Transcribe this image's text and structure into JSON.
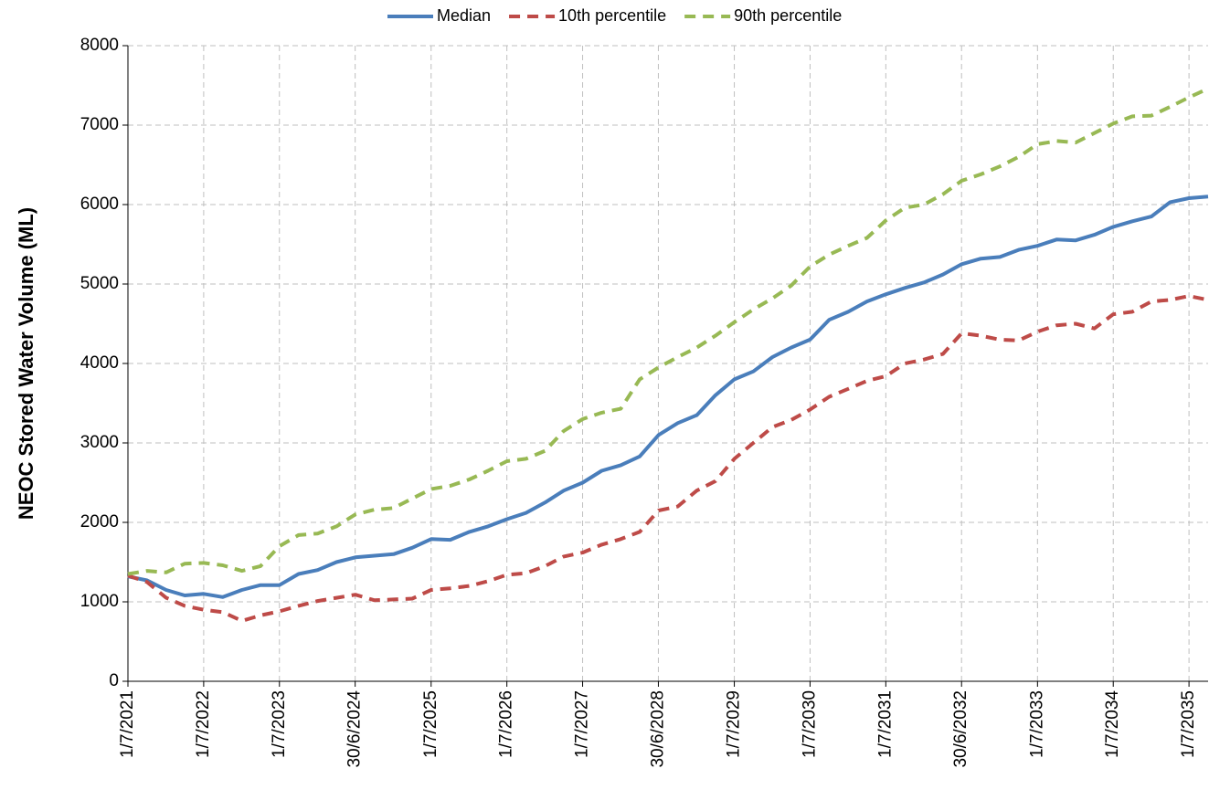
{
  "chart_data": {
    "type": "line",
    "y_label": "NEOC Stored Water Volume (ML)",
    "x": [
      "2021-07-01",
      "2021-10-01",
      "2022-01-01",
      "2022-04-01",
      "2022-07-01",
      "2022-10-01",
      "2023-01-01",
      "2023-04-01",
      "2023-07-01",
      "2023-10-01",
      "2024-01-01",
      "2024-04-01",
      "2024-07-01",
      "2024-10-01",
      "2025-01-01",
      "2025-04-01",
      "2025-07-01",
      "2025-10-01",
      "2026-01-01",
      "2026-04-01",
      "2026-07-01",
      "2026-10-01",
      "2027-01-01",
      "2027-04-01",
      "2027-07-01",
      "2027-10-01",
      "2028-01-01",
      "2028-04-01",
      "2028-07-01",
      "2028-10-01",
      "2029-01-01",
      "2029-04-01",
      "2029-07-01",
      "2029-10-01",
      "2030-01-01",
      "2030-04-01",
      "2030-07-01",
      "2030-10-01",
      "2031-01-01",
      "2031-04-01",
      "2031-07-01",
      "2031-10-01",
      "2032-01-01",
      "2032-04-01",
      "2032-07-01",
      "2032-10-01",
      "2033-01-01",
      "2033-04-01",
      "2033-07-01",
      "2033-10-01",
      "2034-01-01",
      "2034-04-01",
      "2034-07-01",
      "2034-10-01",
      "2035-01-01",
      "2035-04-01",
      "2035-07-01",
      "2035-10-01"
    ],
    "series": [
      {
        "name": "Median",
        "color": "#4a7ebb",
        "dashed": false,
        "values": [
          1320,
          1270,
          1150,
          1080,
          1100,
          1060,
          1150,
          1210,
          1210,
          1350,
          1400,
          1500,
          1560,
          1580,
          1600,
          1680,
          1790,
          1780,
          1880,
          1950,
          2040,
          2120,
          2250,
          2400,
          2500,
          2650,
          2720,
          2830,
          3100,
          3250,
          3350,
          3600,
          3800,
          3900,
          4080,
          4200,
          4300,
          4550,
          4650,
          4780,
          4870,
          4950,
          5020,
          5120,
          5250,
          5320,
          5340,
          5430,
          5480,
          5560,
          5550,
          5620,
          5720,
          5790,
          5850,
          6030,
          6080,
          6100
        ]
      },
      {
        "name": "10th percentile",
        "color": "#be4b48",
        "dashed": true,
        "values": [
          1330,
          1250,
          1050,
          950,
          900,
          870,
          760,
          830,
          880,
          950,
          1010,
          1050,
          1090,
          1020,
          1030,
          1040,
          1150,
          1170,
          1200,
          1260,
          1340,
          1360,
          1450,
          1570,
          1620,
          1720,
          1790,
          1880,
          2150,
          2200,
          2400,
          2520,
          2800,
          3000,
          3200,
          3290,
          3420,
          3580,
          3680,
          3780,
          3840,
          4000,
          4050,
          4120,
          4380,
          4350,
          4300,
          4290,
          4400,
          4480,
          4500,
          4440,
          4620,
          4650,
          4780,
          4800,
          4850,
          4800
        ]
      },
      {
        "name": "90th percentile",
        "color": "#98b954",
        "dashed": true,
        "values": [
          1350,
          1390,
          1370,
          1480,
          1490,
          1460,
          1390,
          1450,
          1700,
          1840,
          1860,
          1950,
          2100,
          2160,
          2180,
          2300,
          2420,
          2460,
          2540,
          2650,
          2770,
          2800,
          2900,
          3150,
          3300,
          3380,
          3430,
          3800,
          3950,
          4080,
          4200,
          4350,
          4520,
          4680,
          4820,
          4980,
          5220,
          5370,
          5480,
          5580,
          5800,
          5960,
          6000,
          6130,
          6300,
          6380,
          6480,
          6600,
          6760,
          6800,
          6780,
          6900,
          7020,
          7110,
          7120,
          7230,
          7350,
          7460
        ]
      }
    ],
    "xlim": [
      "2021-07-01",
      "2035-10-01"
    ],
    "xticks": [
      {
        "value": "2021-07-01",
        "label": "1/7/2021"
      },
      {
        "value": "2022-07-01",
        "label": "1/7/2022"
      },
      {
        "value": "2023-07-01",
        "label": "1/7/2023"
      },
      {
        "value": "2024-06-30",
        "label": "30/6/2024"
      },
      {
        "value": "2025-07-01",
        "label": "1/7/2025"
      },
      {
        "value": "2026-07-01",
        "label": "1/7/2026"
      },
      {
        "value": "2027-07-01",
        "label": "1/7/2027"
      },
      {
        "value": "2028-06-30",
        "label": "30/6/2028"
      },
      {
        "value": "2029-07-01",
        "label": "1/7/2029"
      },
      {
        "value": "2030-07-01",
        "label": "1/7/2030"
      },
      {
        "value": "2031-07-01",
        "label": "1/7/2031"
      },
      {
        "value": "2032-06-30",
        "label": "30/6/2032"
      },
      {
        "value": "2033-07-01",
        "label": "1/7/2033"
      },
      {
        "value": "2034-07-01",
        "label": "1/7/2034"
      },
      {
        "value": "2035-07-01",
        "label": "1/7/2035"
      }
    ],
    "ylim": [
      0,
      8000
    ],
    "yticks": [
      0,
      1000,
      2000,
      3000,
      4000,
      5000,
      6000,
      7000,
      8000
    ],
    "grid": true,
    "legend": "top"
  }
}
